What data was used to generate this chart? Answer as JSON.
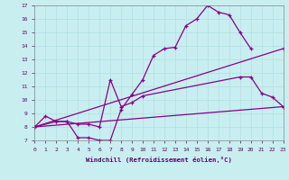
{
  "xlabel": "Windchill (Refroidissement éolien,°C)",
  "background_color": "#c8eef0",
  "line_color": "#880088",
  "xlim": [
    0,
    23
  ],
  "ylim": [
    7,
    17
  ],
  "xticks": [
    0,
    1,
    2,
    3,
    4,
    5,
    6,
    7,
    8,
    9,
    10,
    11,
    12,
    13,
    14,
    15,
    16,
    17,
    18,
    19,
    20,
    21,
    22,
    23
  ],
  "yticks": [
    7,
    8,
    9,
    10,
    11,
    12,
    13,
    14,
    15,
    16,
    17
  ],
  "line1_x": [
    0,
    1,
    2,
    3,
    4,
    5,
    6,
    7,
    8,
    9,
    10,
    11,
    12,
    13,
    14,
    15,
    16,
    17,
    18,
    19,
    20
  ],
  "line1_y": [
    8.0,
    8.8,
    8.4,
    8.4,
    7.2,
    7.2,
    7.0,
    7.0,
    9.3,
    10.4,
    11.5,
    13.3,
    13.8,
    13.9,
    15.5,
    16.0,
    17.0,
    16.5,
    16.3,
    15.0,
    13.8
  ],
  "line2_x": [
    0,
    2,
    3,
    4,
    5,
    6,
    7,
    8,
    9,
    10,
    19,
    20,
    21,
    22,
    23
  ],
  "line2_y": [
    8.0,
    8.4,
    8.4,
    8.2,
    8.2,
    8.0,
    11.5,
    9.5,
    9.8,
    10.3,
    11.7,
    11.7,
    10.5,
    10.2,
    9.5
  ],
  "line3_x": [
    0,
    23
  ],
  "line3_y": [
    8.0,
    13.8
  ],
  "line4_x": [
    0,
    23
  ],
  "line4_y": [
    8.0,
    9.5
  ]
}
